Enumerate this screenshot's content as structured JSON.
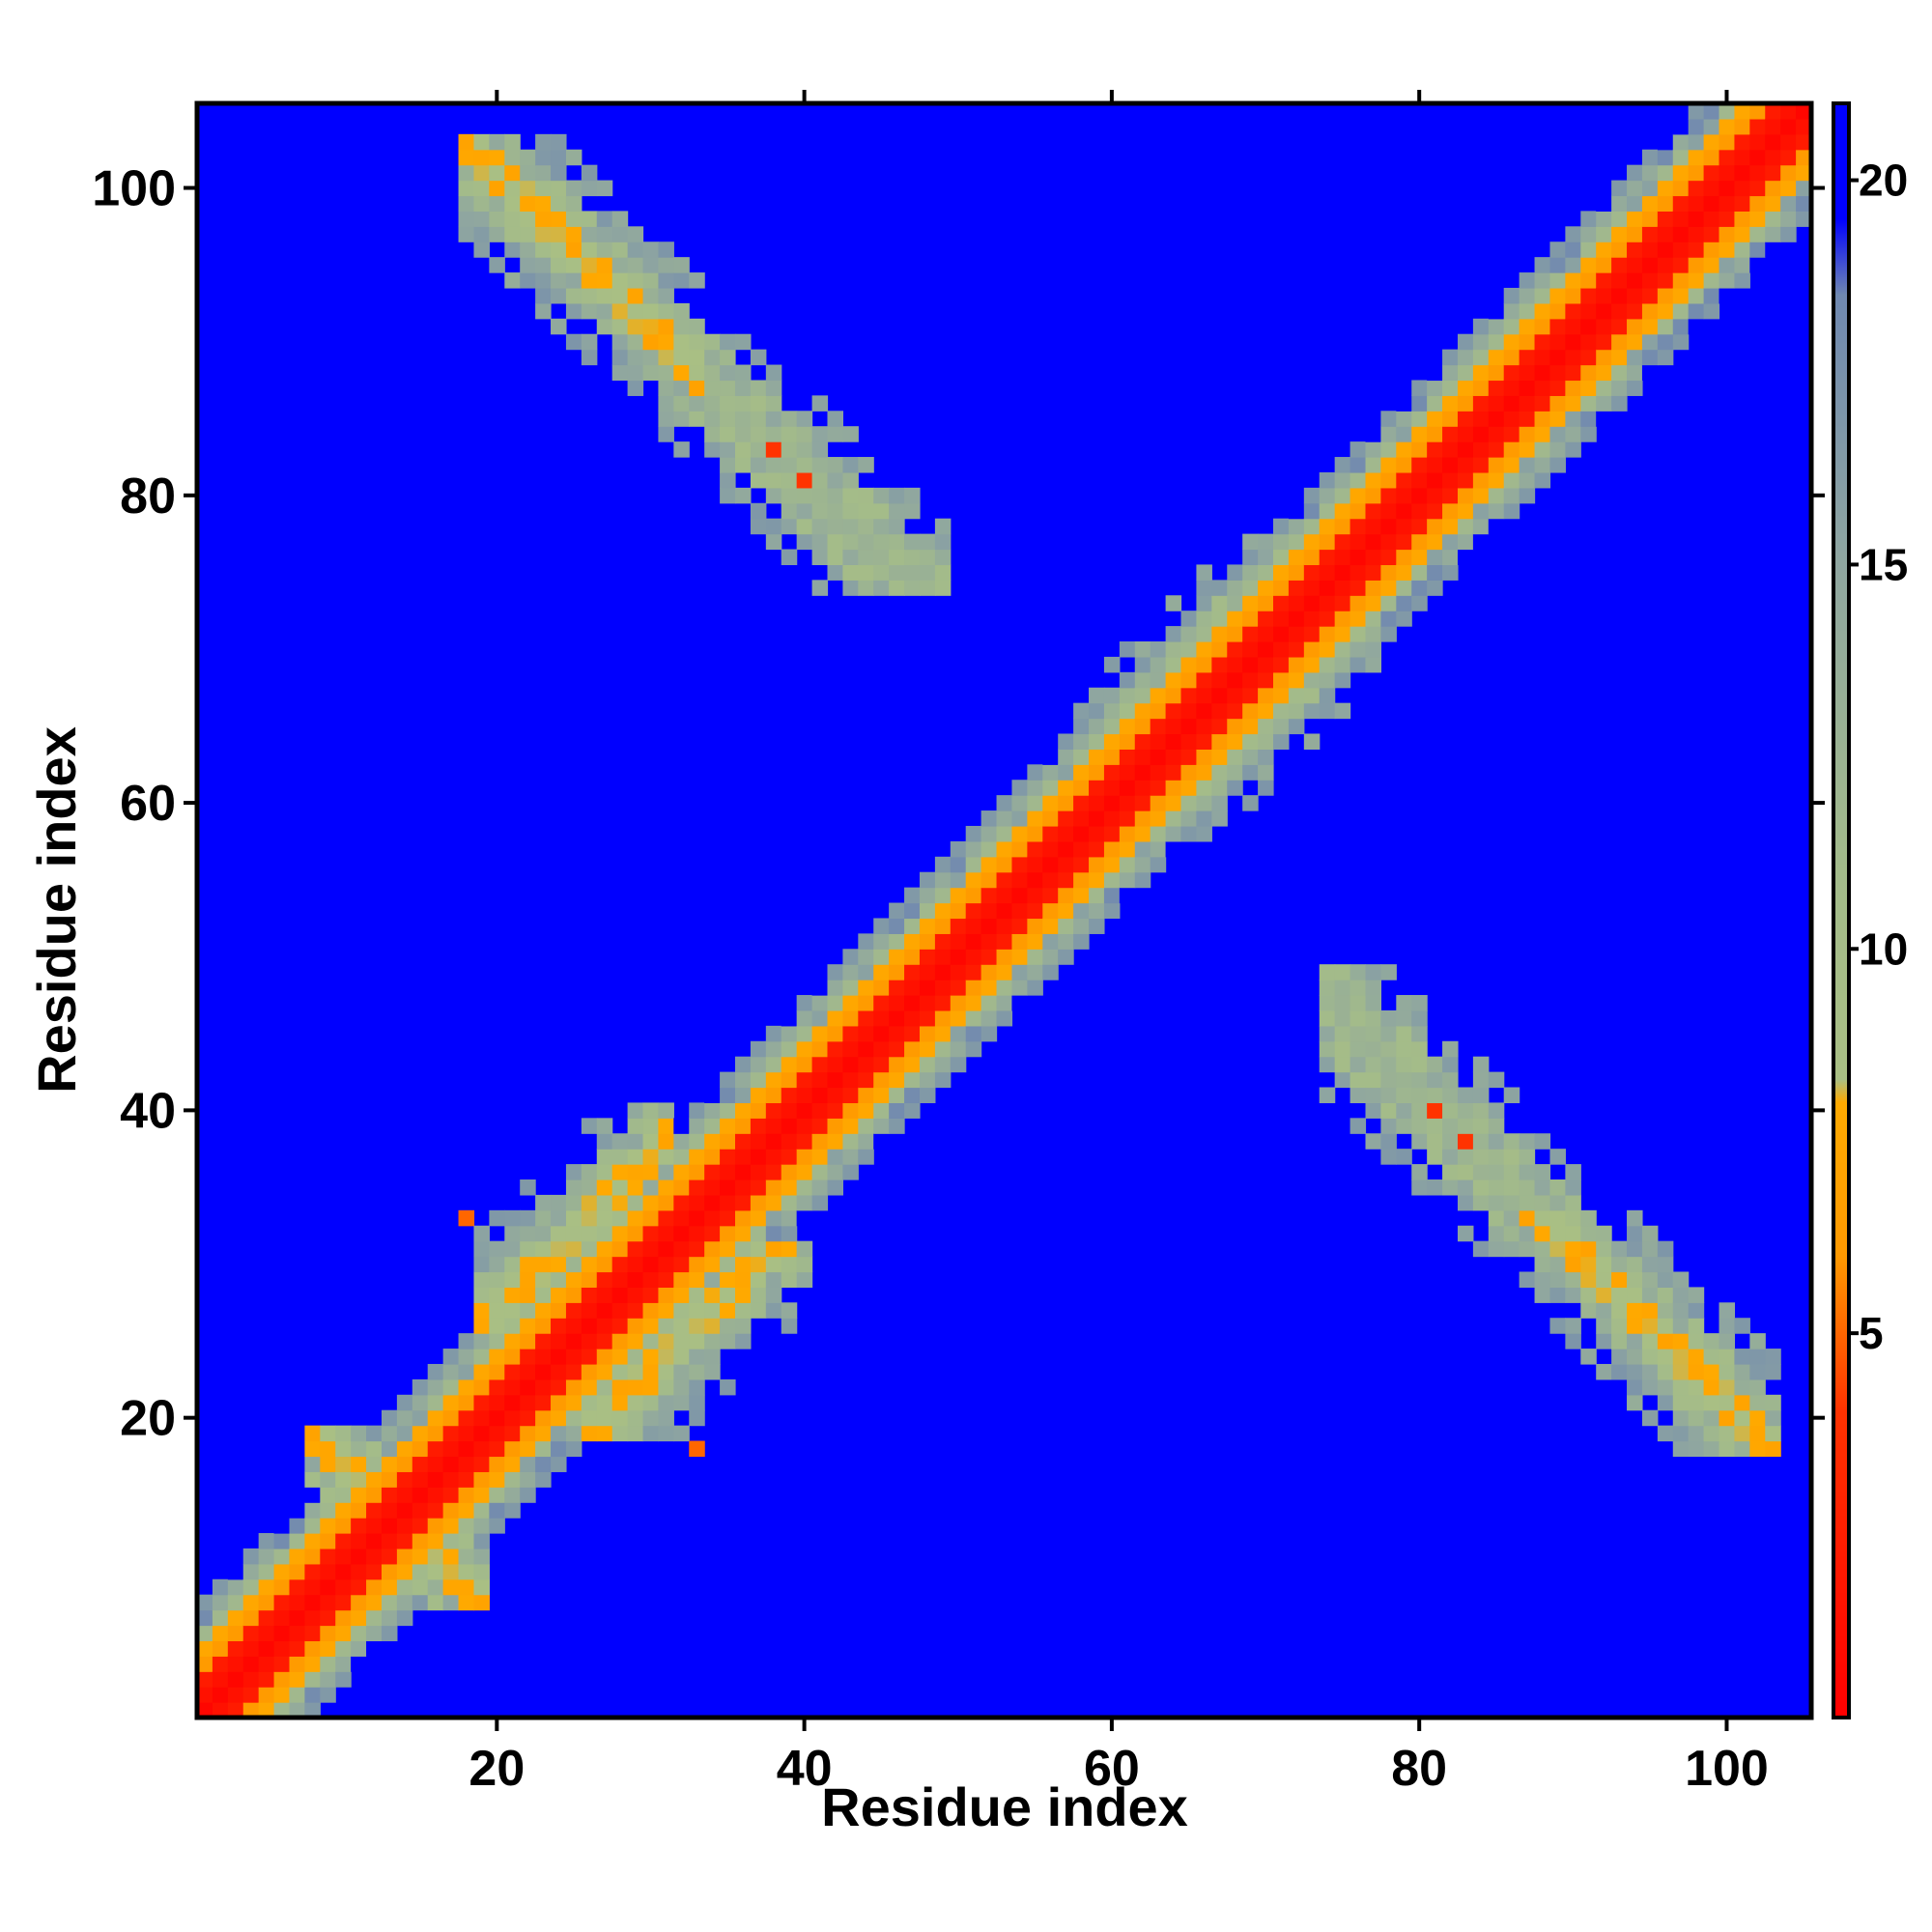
{
  "chart_data": {
    "type": "heatmap",
    "title": "",
    "xlabel": "Residue index",
    "ylabel": "Residue index",
    "n_residues": 105,
    "xlim": [
      0.5,
      105.5
    ],
    "ylim": [
      0.5,
      105.5
    ],
    "x_ticks": [
      20,
      40,
      60,
      80,
      100
    ],
    "y_ticks": [
      20,
      40,
      60,
      80,
      100
    ],
    "colorbar": {
      "range": [
        0,
        21
      ],
      "ticks": [
        5,
        10,
        15,
        20
      ],
      "stops": [
        {
          "value": 0,
          "color": "#ff0000"
        },
        {
          "value": 4,
          "color": "#ff3300"
        },
        {
          "value": 6,
          "color": "#ff9900"
        },
        {
          "value": 8,
          "color": "#ffaa00"
        },
        {
          "value": 8.3,
          "color": "#a9bf84"
        },
        {
          "value": 11,
          "color": "#a3bb8a"
        },
        {
          "value": 15,
          "color": "#8fa6a0"
        },
        {
          "value": 18.5,
          "color": "#6f88b0"
        },
        {
          "value": 19.5,
          "color": "#0000ff"
        },
        {
          "value": 21,
          "color": "#0000ff"
        }
      ]
    },
    "cap_value": 21,
    "diagonal_band": {
      "core_width": 2.2,
      "mid_width": 4.0,
      "outer_width": 7.5
    },
    "contact_regions": [
      {
        "name": "antiparallel",
        "i": [
          10,
          17
        ],
        "j": [
          10,
          17
        ],
        "value": 7
      },
      {
        "name": "parallel",
        "i": [
          21,
          29
        ],
        "j": [
          28,
          38
        ],
        "value": 7
      },
      {
        "name": "antiparallel",
        "i": [
          20,
          31
        ],
        "j": [
          89,
          101
        ],
        "value": 7
      },
      {
        "name": "parallel",
        "i": [
          60,
          72
        ],
        "j": [
          63,
          75
        ],
        "value": 7
      },
      {
        "name": "antiparallel",
        "i": [
          33,
          47
        ],
        "j": [
          76,
          88
        ],
        "value": 11
      }
    ],
    "isolated_contacts": [
      {
        "i": 38,
        "j": 83,
        "value": 4
      },
      {
        "i": 40,
        "j": 81,
        "value": 4
      },
      {
        "i": 33,
        "j": 18,
        "value": 5
      },
      {
        "i": 18,
        "j": 33,
        "value": 5
      }
    ]
  }
}
